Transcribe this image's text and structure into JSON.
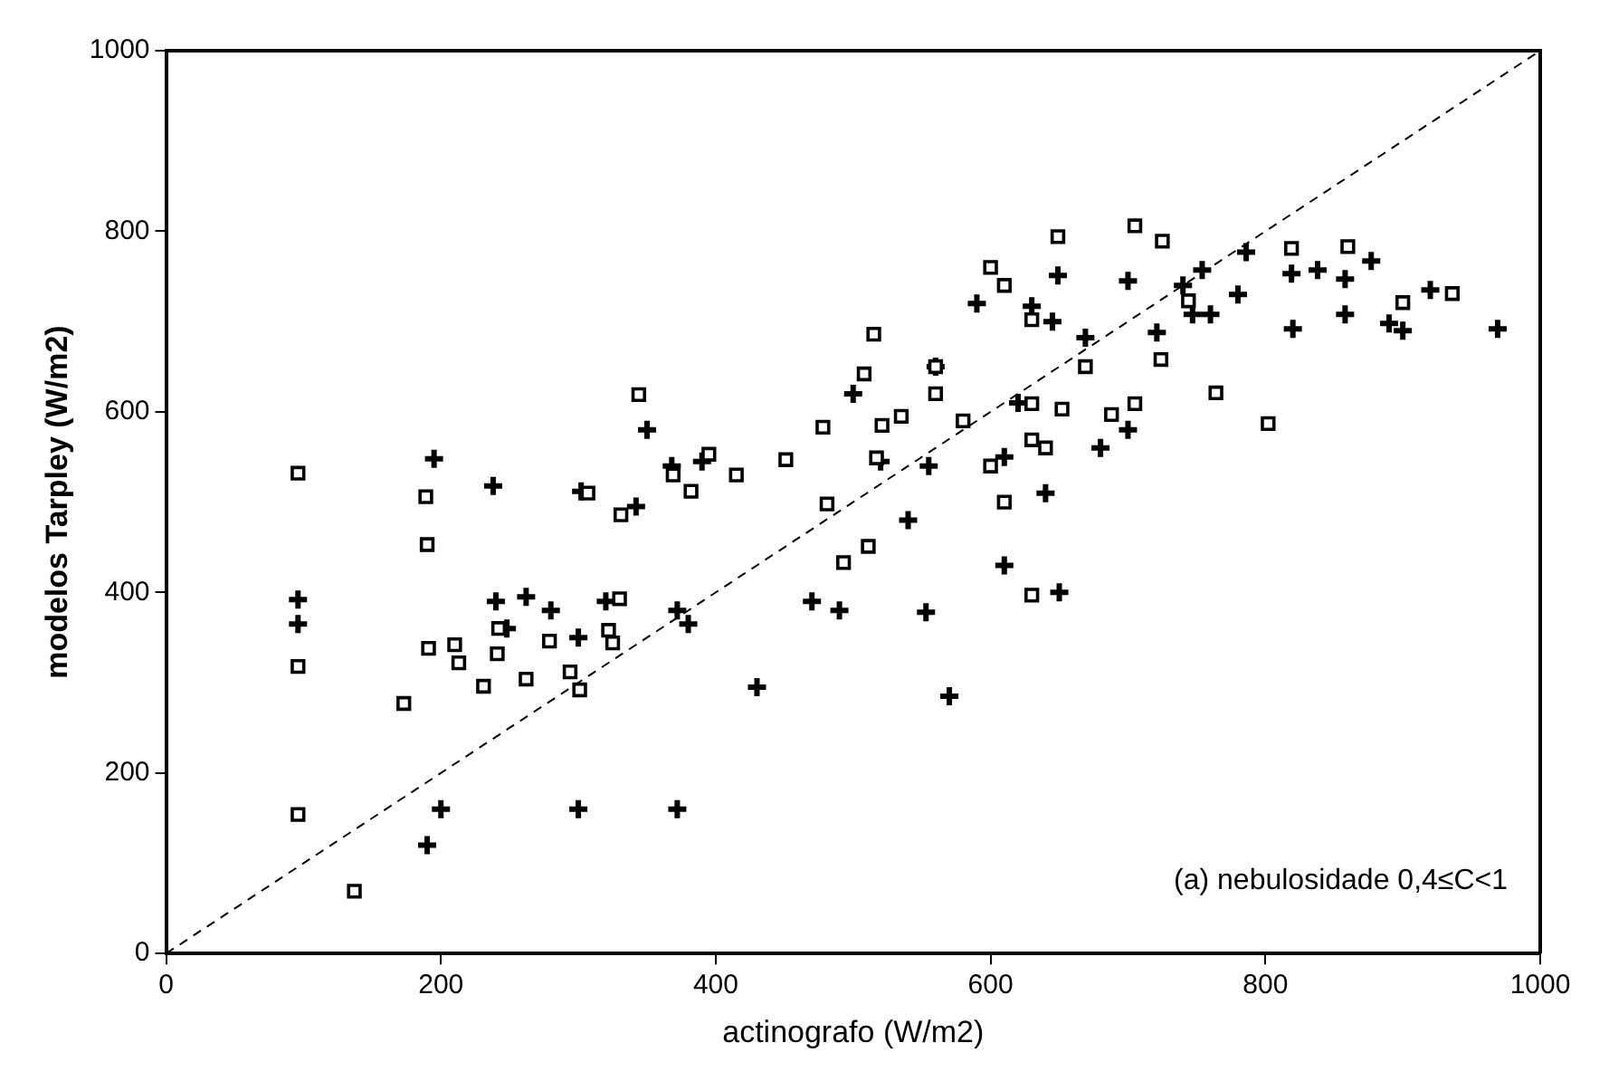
{
  "chart_data": {
    "type": "scatter",
    "xlabel": "actinografo (W/m2)",
    "ylabel": "modelos Tarpley (W/m2)",
    "xlim": [
      0,
      1000
    ],
    "ylim": [
      0,
      1000
    ],
    "xticks": [
      0,
      200,
      400,
      600,
      800,
      1000
    ],
    "yticks": [
      0,
      200,
      400,
      600,
      800,
      1000
    ],
    "grid": false,
    "legend": false,
    "annotations": [
      "(a) nebulosidade 0,4≤C<1"
    ],
    "series": [
      {
        "type": "scatter",
        "marker": "square",
        "color": "#000000",
        "x": [
          96,
          96,
          96,
          137,
          173,
          189,
          190,
          191,
          210,
          213,
          231,
          241,
          242,
          262,
          279,
          294,
          301,
          307,
          322,
          325,
          331,
          330,
          344,
          382,
          369,
          415,
          395,
          451,
          481,
          478,
          508,
          515,
          517,
          521,
          493,
          511,
          535,
          560,
          649,
          705,
          725,
          819,
          860,
          936,
          900,
          744,
          630,
          669,
          724,
          630,
          652,
          705,
          764,
          802,
          630,
          630,
          688,
          600,
          610,
          640,
          560,
          580,
          600,
          610
        ],
        "values": [
          318,
          532,
          154,
          69,
          277,
          506,
          453,
          338,
          342,
          322,
          296,
          332,
          360,
          304,
          346,
          312,
          292,
          510,
          358,
          344,
          486,
          393,
          619,
          512,
          530,
          530,
          553,
          547,
          498,
          583,
          642,
          686,
          549,
          585,
          433,
          451,
          595,
          650,
          794,
          806,
          789,
          781,
          783,
          731,
          721,
          723,
          702,
          650,
          658,
          609,
          603,
          609,
          621,
          587,
          569,
          397,
          597,
          540,
          500,
          560,
          620,
          590,
          760,
          740
        ]
      },
      {
        "type": "scatter",
        "marker": "cross",
        "color": "#000000",
        "x": [
          96,
          96,
          190,
          200,
          195,
          238,
          240,
          248,
          262,
          280,
          300,
          302,
          320,
          342,
          350,
          368,
          372,
          380,
          390,
          300,
          372,
          430,
          470,
          490,
          500,
          520,
          555,
          570,
          553,
          540,
          560,
          590,
          610,
          610,
          620,
          640,
          650,
          645,
          680,
          700,
          649,
          669,
          721,
          747,
          760,
          754,
          786,
          819,
          838,
          858,
          877,
          858,
          890,
          969,
          900,
          920,
          820,
          780,
          740,
          700,
          630
        ],
        "values": [
          392,
          365,
          120,
          160,
          548,
          518,
          390,
          360,
          395,
          380,
          350,
          512,
          390,
          495,
          580,
          540,
          380,
          365,
          545,
          160,
          160,
          295,
          390,
          380,
          620,
          545,
          540,
          285,
          378,
          480,
          650,
          720,
          550,
          430,
          610,
          510,
          400,
          700,
          560,
          580,
          751,
          682,
          688,
          708,
          708,
          757,
          777,
          753,
          757,
          747,
          767,
          708,
          698,
          692,
          690,
          735,
          692,
          730,
          740,
          745,
          717
        ]
      },
      {
        "type": "line",
        "line_style": "dashed",
        "marker": "none",
        "color": "#000000",
        "x": [
          0,
          1000
        ],
        "values": [
          0,
          1000
        ]
      }
    ]
  }
}
